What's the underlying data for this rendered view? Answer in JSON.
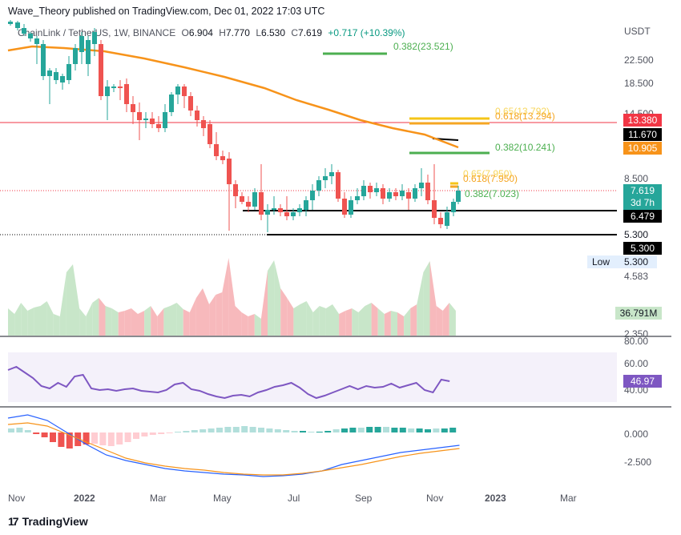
{
  "header": {
    "text": "Wave_Theory published on TradingView.com, Dec 01, 2022 17:03 UTC"
  },
  "legend": {
    "symbol": "ChainLink / TetherUS, 1W, BINANCE",
    "open_label": "O",
    "open": "6.904",
    "high_label": "H",
    "high": "7.770",
    "low_label": "L",
    "low": "6.530",
    "close_label": "C",
    "close": "7.619",
    "change": "+0.717 (+10.39%)"
  },
  "price_axis": {
    "currency": "USDT",
    "ticks": [
      "22.500",
      "18.500",
      "14.500",
      "8.500"
    ]
  },
  "price_tags": {
    "red_line": "13.380",
    "black_level": "11.670",
    "ema": "10.905",
    "last_price": "7.619",
    "countdown": "3d 7h",
    "support_1": "6.479",
    "support_2_plain": "5.300",
    "support_2": "5.300",
    "low_label": "Low",
    "low_value": "5.300",
    "below_low": "4.583"
  },
  "fib_labels": {
    "f1": "0.382(23.521)",
    "f2_back": "0.65(13.792)",
    "f2": "0.618(13.294)",
    "f3": "0.382(10.241)",
    "f4_back": "0.65(7.950)",
    "f4": "0.618(7.950)",
    "f5": "0.382(7.023)"
  },
  "volume_pane": {
    "value": "36.791M",
    "tick_bottom": "2.350"
  },
  "rsi_pane": {
    "tick_top": "80.00",
    "tick_mid": "60.00",
    "tick_low": "40.00",
    "value": "46.97"
  },
  "macd_pane": {
    "tick_zero": "0.000",
    "tick_neg": "-2.500"
  },
  "time_axis": [
    "Nov",
    "2022",
    "Mar",
    "May",
    "Jul",
    "Sep",
    "Nov",
    "2023",
    "Mar"
  ],
  "footer": {
    "logo": "17",
    "brand": "TradingView"
  },
  "colors": {
    "up": "#26a69a",
    "down": "#ef5350",
    "ema": "#f7931a",
    "rsi": "#7e57c2",
    "fib_green": "#4caf50",
    "fib_yellow": "#f5c518",
    "red_line": "#f23645"
  }
}
